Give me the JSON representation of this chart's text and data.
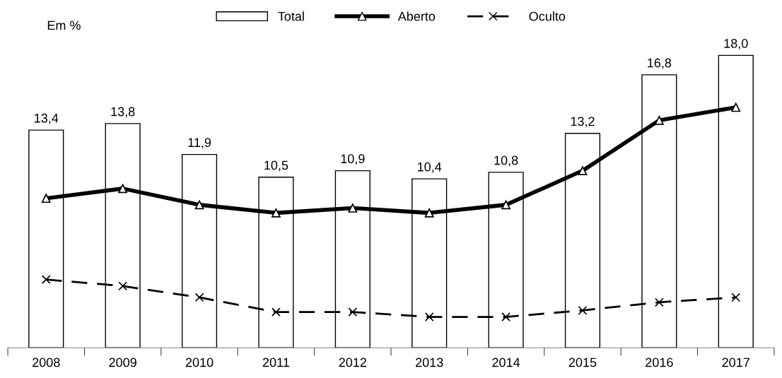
{
  "chart_data": {
    "type": "bar",
    "categories": [
      "2008",
      "2009",
      "2010",
      "2011",
      "2012",
      "2013",
      "2014",
      "2015",
      "2016",
      "2017"
    ],
    "series": [
      {
        "name": "Total",
        "color": "#ffffff",
        "values": [
          13.4,
          13.8,
          11.9,
          10.5,
          10.9,
          10.4,
          10.8,
          13.2,
          16.8,
          18.0
        ],
        "value_labels": [
          "13,4",
          "13,8",
          "11,9",
          "10,5",
          "10,9",
          "10,4",
          "10,8",
          "13,2",
          "16,8",
          "18,0"
        ]
      },
      {
        "name": "Aberto",
        "type": "line",
        "color": "#000000",
        "marker": "triangle",
        "line_style": "solid",
        "values": [
          9.2,
          9.8,
          8.8,
          8.3,
          8.6,
          8.3,
          8.8,
          10.9,
          14.0,
          14.8
        ]
      },
      {
        "name": "Oculto",
        "type": "line",
        "color": "#000000",
        "marker": "cross",
        "line_style": "dashed",
        "values": [
          4.2,
          3.8,
          3.1,
          2.2,
          2.2,
          1.9,
          1.9,
          2.3,
          2.8,
          3.1
        ]
      }
    ],
    "annotations": [
      "Em %"
    ],
    "legend": "top",
    "tick_labels": "x",
    "grid": false
  }
}
